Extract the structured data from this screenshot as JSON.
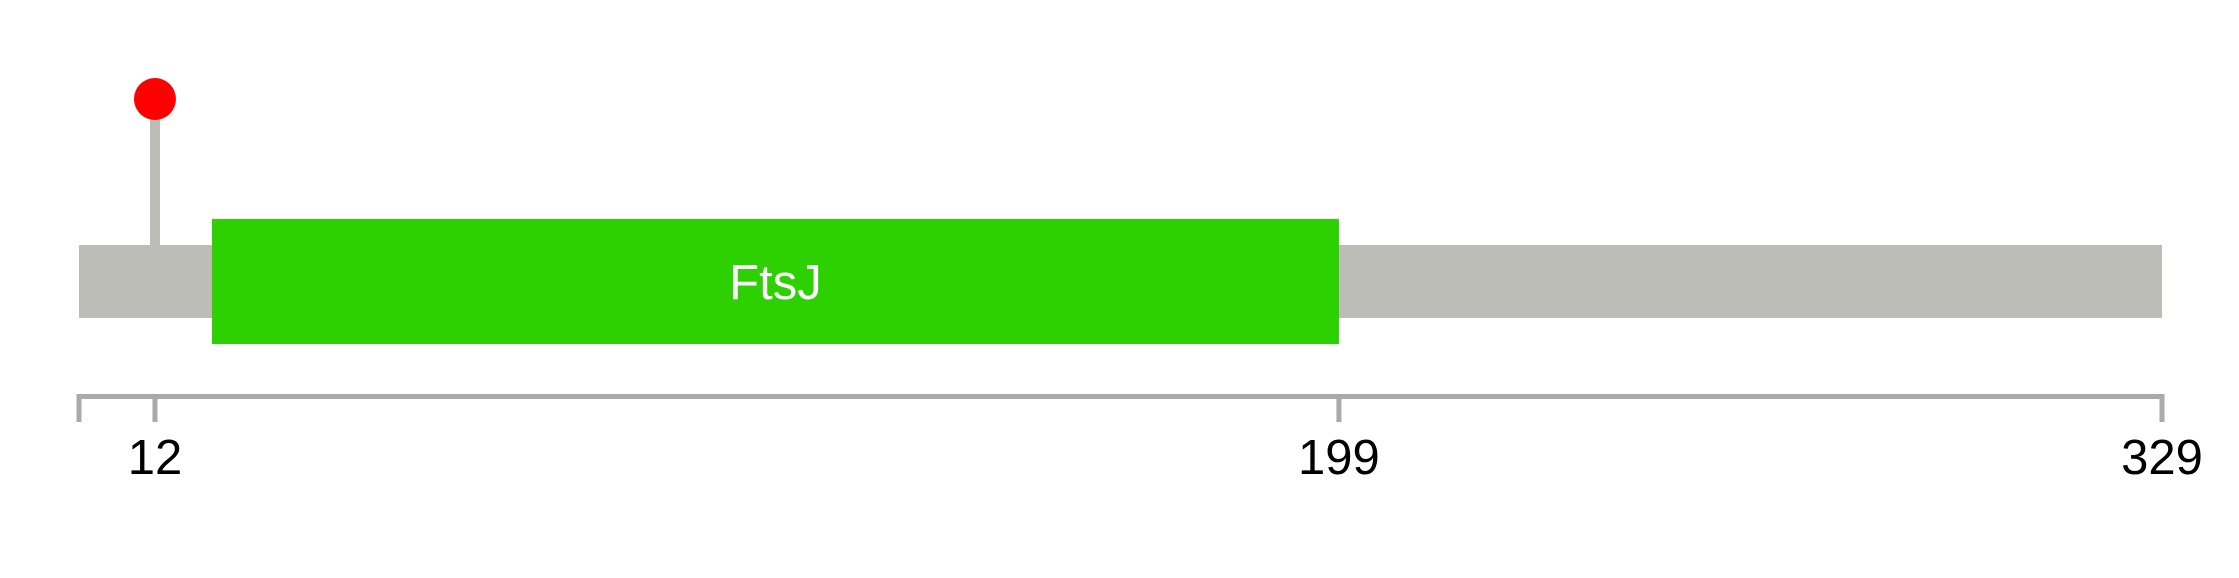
{
  "protein": {
    "length": 329,
    "backbone_color": "#bbbdb6",
    "domains": [
      {
        "name": "FtsJ",
        "start": 21,
        "end": 199,
        "color": "#2dd000",
        "label_color": "#ffffff"
      }
    ],
    "mutations": [
      {
        "position": 12,
        "color": "#ff0000"
      }
    ],
    "axis": {
      "color": "#aaaaaa",
      "ticks": [
        {
          "value": 0,
          "label": ""
        },
        {
          "value": 12,
          "label": "12"
        },
        {
          "value": 199,
          "label": "199"
        },
        {
          "value": 329,
          "label": "329"
        }
      ]
    }
  }
}
